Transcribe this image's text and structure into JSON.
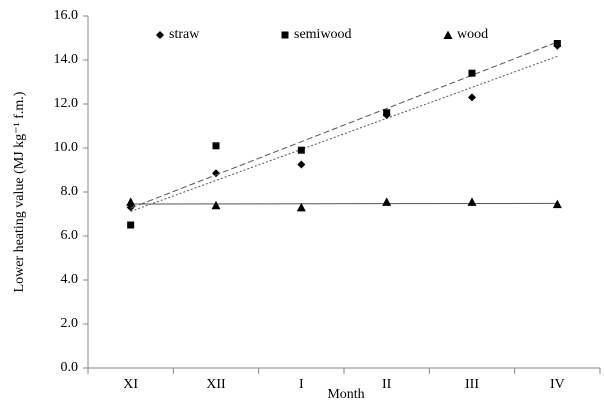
{
  "chart_data": {
    "type": "scatter",
    "y_label": "Lower heating value (MJ kg⁻¹ f.m.)",
    "x_label": "Month",
    "categories": [
      "XI",
      "XII",
      "I",
      "II",
      "III",
      "IV"
    ],
    "series": [
      {
        "name": "straw",
        "color": "#000000",
        "marker": "diamond",
        "trend": "dotted",
        "values": [
          7.3,
          8.85,
          9.25,
          11.5,
          12.3,
          14.65
        ]
      },
      {
        "name": "semiwood",
        "color": "#000000",
        "marker": "square",
        "trend": "dashed",
        "values": [
          6.5,
          10.1,
          9.9,
          11.6,
          13.4,
          14.75
        ]
      },
      {
        "name": "wood",
        "color": "#000000",
        "marker": "triangle",
        "trend": "solid",
        "values": [
          7.55,
          7.4,
          7.3,
          7.55,
          7.55,
          7.45
        ]
      }
    ],
    "ylim": [
      0,
      16
    ],
    "yticks": [
      {
        "value": 0,
        "label": "0.0"
      },
      {
        "value": 2,
        "label": "2.0"
      },
      {
        "value": 4,
        "label": "4.0"
      },
      {
        "value": 6,
        "label": "6.0"
      },
      {
        "value": 8,
        "label": "8.0"
      },
      {
        "value": 10,
        "label": "10.0"
      },
      {
        "value": 12,
        "label": "12.0"
      },
      {
        "value": 14,
        "label": "14.0"
      },
      {
        "value": 16,
        "label": "16.0"
      }
    ],
    "grid": false,
    "legend": "top"
  }
}
